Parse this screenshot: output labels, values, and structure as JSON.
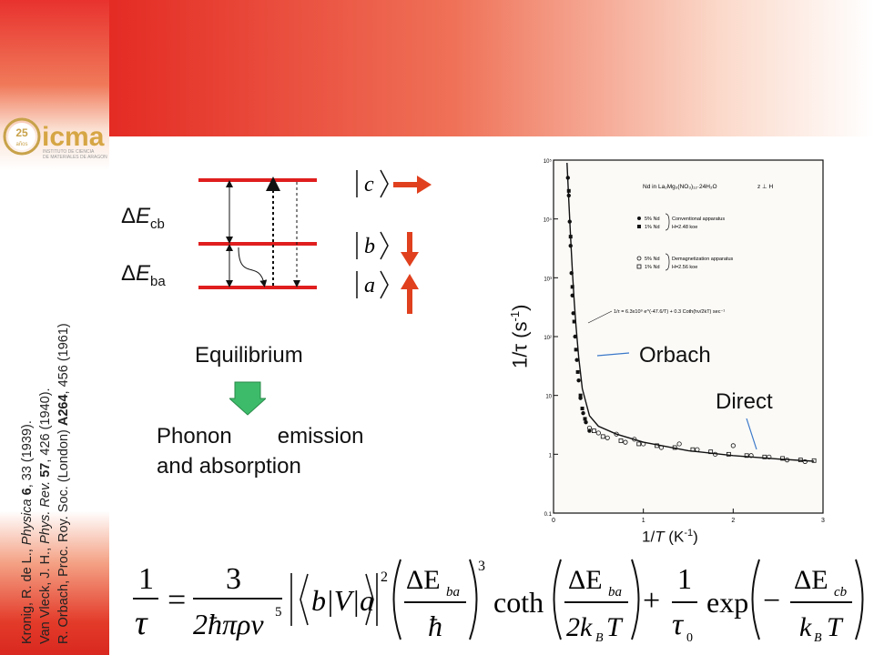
{
  "logo": {
    "anniversary": "25",
    "anniversary_sub": "años",
    "name": "icma",
    "subtitle_1": "INSTITUTO DE CIENCIA",
    "subtitle_2": "DE MATERIALES DE ARAGON"
  },
  "references": [
    {
      "authors": "Kronig, R. de L., ",
      "journal": "Physica",
      "vol": "6",
      "rest": ", 33 (1939)."
    },
    {
      "authors": "Van Vleck, J. H., ",
      "journal": "Phys. Rev.",
      "vol": "57",
      "rest": ", 426 (1940)."
    },
    {
      "authors": "R. Orbach, Proc. Roy. Soc. (London) ",
      "journal": "",
      "vol": "A264",
      "rest": ", 456 (1961)"
    }
  ],
  "levels": {
    "delta": "Δ",
    "e": "E",
    "cb": "cb",
    "ba": "ba"
  },
  "kets": {
    "c": "c",
    "b": "b",
    "a": "a"
  },
  "labels": {
    "equilibrium": "Equilibrium",
    "phonon_line1_a": "Phonon",
    "phonon_line1_b": "emission",
    "phonon_line2": "and absorption",
    "orbach": "Orbach",
    "direct": "Direct"
  },
  "axes": {
    "ylabel_pre": "1/",
    "ylabel_tau": "τ",
    "ylabel_unit": " (s",
    "ylabel_exp": "-1",
    "ylabel_close": ")",
    "xlabel_pre": "1/",
    "xlabel_T": "T",
    "xlabel_unit": " (K",
    "xlabel_exp": "-1",
    "xlabel_close": ")"
  },
  "plot_text": {
    "title": "Nd in La₂Mg₃(NO₃)₁₂·24H₂O",
    "orientation": "z ⊥ H",
    "leg1": "5% Nd",
    "leg2": "1% Nd",
    "leg_brace1": "Conventional apparatus",
    "leg_brace1b": "H=2.48 koe",
    "leg3": "5% Nd",
    "leg4": "1% Nd",
    "leg_brace2": "Demagnetization apparatus",
    "leg_brace2b": "H=2.56 koe",
    "fit": "1/τ = 6.3x10⁹ e^(-47.6/T) + 0.3 Coth(hν/2kT) sec⁻¹",
    "yticks": [
      "10⁵",
      "10⁴",
      "10³",
      "10²",
      "10",
      "1",
      "0.1"
    ],
    "xticks": [
      "0",
      "1",
      "2",
      "3"
    ]
  },
  "chart_data": {
    "type": "scatter",
    "title": "Nd in La₂Mg₃(NO₃)₁₂·24H₂O",
    "xlabel": "1/T (K⁻¹)",
    "ylabel": "1/τ (s⁻¹)",
    "yscale": "log",
    "xlim": [
      0,
      3
    ],
    "ylim": [
      0.1,
      100000
    ],
    "series": [
      {
        "name": "5% Nd Conventional apparatus",
        "marker": "filled-circle",
        "x": [
          0.16,
          0.17,
          0.18,
          0.19,
          0.2,
          0.21,
          0.22,
          0.24,
          0.26,
          0.28,
          0.3,
          0.33,
          0.36,
          0.4
        ],
        "y": [
          50000,
          25000,
          9000,
          3500,
          1200,
          500,
          250,
          100,
          40,
          18,
          9,
          5,
          3.5,
          2.5
        ]
      },
      {
        "name": "1% Nd Conventional apparatus",
        "marker": "filled-square",
        "x": [
          0.17,
          0.19,
          0.21,
          0.23,
          0.25,
          0.27,
          0.3,
          0.32,
          0.35
        ],
        "y": [
          30000,
          5000,
          700,
          180,
          60,
          25,
          10,
          6,
          4
        ]
      },
      {
        "name": "5% Nd Demagnetization apparatus",
        "marker": "open-circle",
        "x": [
          0.4,
          0.5,
          0.6,
          0.7,
          0.8,
          0.9,
          1.0,
          1.2,
          1.4,
          1.6,
          1.8,
          2.0,
          2.2,
          2.4,
          2.6,
          2.8
        ],
        "y": [
          2.8,
          2.3,
          1.9,
          2.2,
          1.6,
          1.8,
          1.5,
          1.3,
          1.5,
          1.2,
          1.0,
          1.4,
          0.95,
          0.9,
          0.8,
          0.75
        ]
      },
      {
        "name": "1% Nd Demagnetization apparatus",
        "marker": "open-square",
        "x": [
          0.45,
          0.55,
          0.75,
          0.95,
          1.15,
          1.35,
          1.55,
          1.75,
          1.95,
          2.15,
          2.35,
          2.55,
          2.75,
          2.9
        ],
        "y": [
          2.5,
          2.0,
          1.7,
          1.5,
          1.4,
          1.3,
          1.2,
          1.1,
          1.0,
          0.95,
          0.9,
          0.85,
          0.8,
          0.78
        ]
      },
      {
        "name": "fit",
        "type": "line",
        "x": [
          0.15,
          0.17,
          0.19,
          0.21,
          0.23,
          0.25,
          0.28,
          0.32,
          0.4,
          0.5,
          0.7,
          1.0,
          1.5,
          2.0,
          2.5,
          2.9
        ],
        "y": [
          90000,
          20000,
          5000,
          1300,
          400,
          150,
          45,
          13,
          4.5,
          3.0,
          2.2,
          1.6,
          1.15,
          0.95,
          0.83,
          0.76
        ]
      }
    ]
  },
  "formula": {
    "one": "1",
    "tau": "τ",
    "eq": "=",
    "three": "3",
    "den": "2ħπρv",
    "den_exp": "5",
    "braket": "b|V|a",
    "sq": "2",
    "dE": "ΔE",
    "ba": "ba",
    "hbar": "ħ",
    "cube": "3",
    "coth": "coth",
    "two_k": "2k",
    "B": "B",
    "T": "T",
    "plus": "+",
    "tau0": "τ",
    "zero": "0",
    "exp": "exp",
    "minus": "−",
    "cb": "cb",
    "k": "k"
  }
}
